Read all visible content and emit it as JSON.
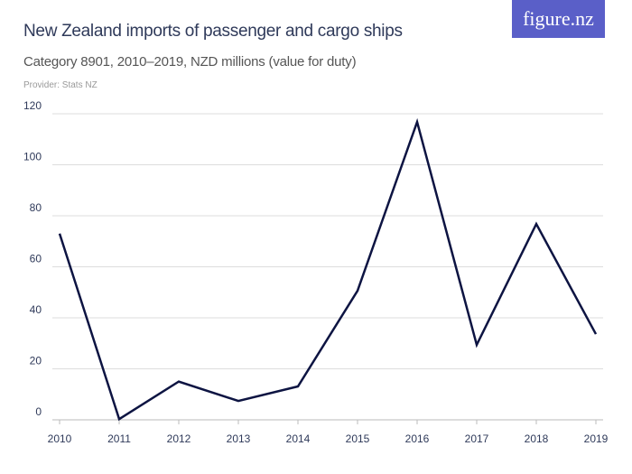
{
  "logo": "figure.nz",
  "colors": {
    "logo_bg": "#5a5fc8",
    "line": "#0d1442",
    "grid": "#dddddd"
  },
  "chart_data": {
    "type": "line",
    "title": "New Zealand imports of passenger and cargo ships",
    "subtitle": "Category 8901, 2010–2019, NZD millions (value for duty)",
    "provider": "Provider: Stats NZ",
    "x": [
      "2010",
      "2011",
      "2012",
      "2013",
      "2014",
      "2015",
      "2016",
      "2017",
      "2018",
      "2019"
    ],
    "values": [
      73,
      0.3,
      15,
      7.4,
      13.1,
      50.6,
      116.8,
      29.4,
      76.8,
      33.6
    ],
    "yticks": [
      0,
      20,
      40,
      60,
      80,
      100,
      120
    ],
    "ylim": [
      0,
      120
    ],
    "grid": true
  }
}
